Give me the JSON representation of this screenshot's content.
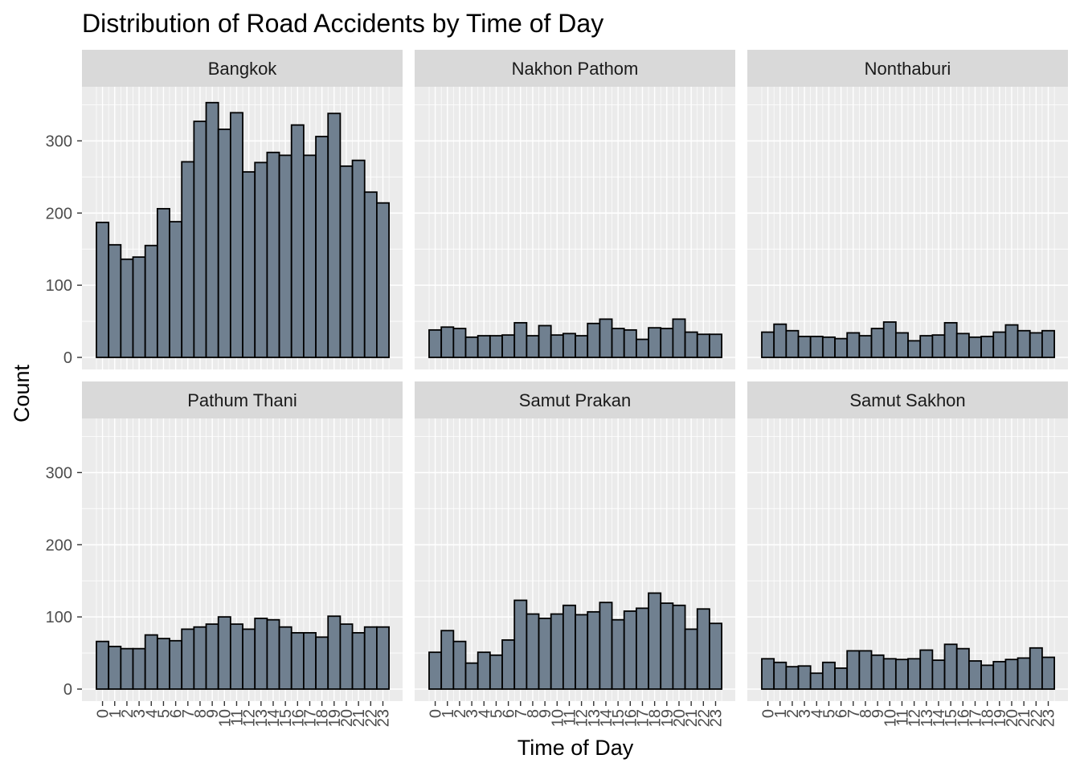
{
  "colors": {
    "panel_bg": "#ebebeb",
    "strip_bg": "#d9d9d9",
    "grid": "#ffffff",
    "bar_fill": "#708090",
    "bar_stroke": "#000000",
    "tick": "#333333"
  },
  "chart_data": {
    "type": "bar",
    "title": "Distribution of Road Accidents by Time of Day",
    "xlabel": "Time of Day",
    "ylabel": "Count",
    "ylim": [
      0,
      375
    ],
    "y_ticks": [
      0,
      100,
      200,
      300
    ],
    "grid": true,
    "layout": "facet 2x3",
    "categories": [
      "0",
      "1",
      "2",
      "3",
      "4",
      "5",
      "6",
      "7",
      "8",
      "9",
      "10",
      "11",
      "12",
      "13",
      "14",
      "15",
      "16",
      "17",
      "18",
      "19",
      "20",
      "21",
      "22",
      "23"
    ],
    "series": [
      {
        "name": "Bangkok",
        "values": [
          187,
          156,
          136,
          139,
          155,
          206,
          188,
          271,
          327,
          353,
          316,
          339,
          257,
          270,
          284,
          280,
          322,
          280,
          306,
          338,
          265,
          273,
          229,
          214
        ]
      },
      {
        "name": "Nakhon Pathom",
        "values": [
          38,
          42,
          40,
          28,
          30,
          30,
          31,
          48,
          30,
          44,
          31,
          33,
          30,
          47,
          53,
          40,
          38,
          25,
          41,
          40,
          53,
          35,
          32,
          32
        ]
      },
      {
        "name": "Nonthaburi",
        "values": [
          35,
          46,
          37,
          29,
          29,
          28,
          26,
          34,
          30,
          40,
          49,
          34,
          23,
          30,
          31,
          48,
          33,
          28,
          29,
          35,
          45,
          37,
          34,
          37
        ]
      },
      {
        "name": "Pathum Thani",
        "values": [
          66,
          59,
          56,
          56,
          75,
          70,
          67,
          83,
          86,
          90,
          100,
          90,
          83,
          98,
          96,
          86,
          78,
          78,
          72,
          101,
          90,
          78,
          86,
          86
        ]
      },
      {
        "name": "Samut Prakan",
        "values": [
          51,
          81,
          66,
          36,
          51,
          47,
          68,
          123,
          104,
          98,
          104,
          116,
          103,
          107,
          120,
          96,
          108,
          112,
          133,
          119,
          116,
          83,
          111,
          91
        ]
      },
      {
        "name": "Samut Sakhon",
        "values": [
          42,
          37,
          31,
          32,
          22,
          37,
          29,
          53,
          53,
          47,
          42,
          41,
          42,
          54,
          40,
          62,
          56,
          39,
          33,
          38,
          41,
          43,
          57,
          44
        ]
      }
    ]
  }
}
